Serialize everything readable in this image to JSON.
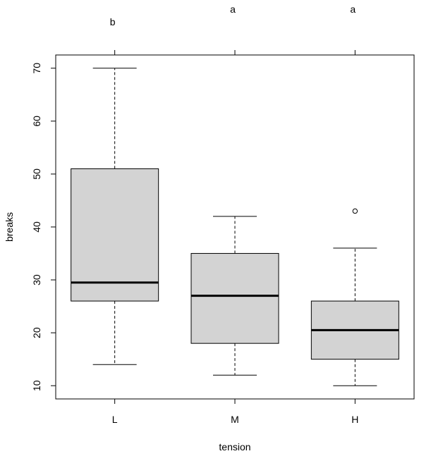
{
  "chart_data": {
    "type": "boxplot",
    "xlabel": "tension",
    "ylabel": "breaks",
    "ylim": [
      7.5,
      72.5
    ],
    "yticks": [
      10,
      20,
      30,
      40,
      50,
      60,
      70
    ],
    "categories": [
      "L",
      "M",
      "H"
    ],
    "boxes": [
      {
        "category": "L",
        "whisker_low": 14,
        "q1": 26,
        "median": 29.5,
        "q3": 51,
        "whisker_high": 70,
        "outliers": [],
        "letter": "b"
      },
      {
        "category": "M",
        "whisker_low": 12,
        "q1": 18,
        "median": 27,
        "q3": 35,
        "whisker_high": 42,
        "outliers": [],
        "letter": "a"
      },
      {
        "category": "H",
        "whisker_low": 10,
        "q1": 15,
        "median": 20.5,
        "q3": 26,
        "whisker_high": 36,
        "outliers": [
          43
        ],
        "letter": "a"
      }
    ],
    "box_fill": "#d3d3d3",
    "grid": false,
    "legend": "none"
  }
}
